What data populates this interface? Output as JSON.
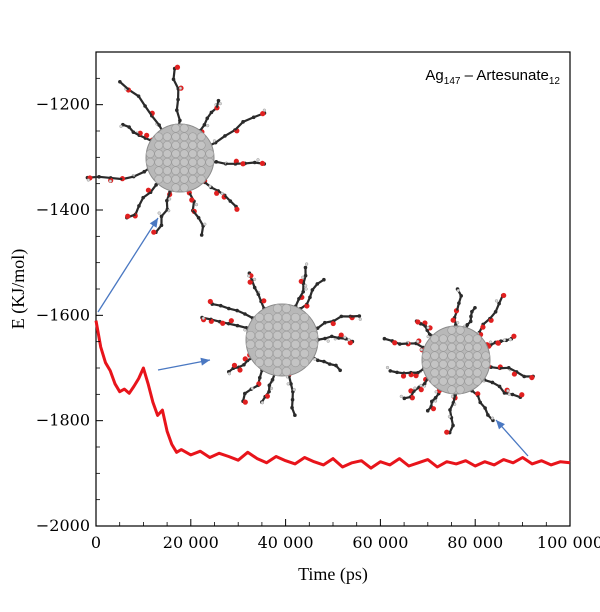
{
  "chart_data": {
    "type": "line",
    "title": "",
    "legend_label": {
      "base": "Ag",
      "sub1": "147",
      "dash": " – Artesunate",
      "sub2": "12"
    },
    "legend_placement": "top-right",
    "xlabel": "Time  (ps)",
    "ylabel": "E (KJ/mol)",
    "xlim": [
      0,
      100000
    ],
    "ylim": [
      -2000,
      -1100
    ],
    "x_ticks": [
      {
        "value": 0,
        "label": "0"
      },
      {
        "value": 20000,
        "label": "20 000"
      },
      {
        "value": 40000,
        "label": "40 000"
      },
      {
        "value": 60000,
        "label": "60 000"
      },
      {
        "value": 80000,
        "label": "80 000"
      },
      {
        "value": 100000,
        "label": "100 000"
      }
    ],
    "y_ticks": [
      {
        "value": -2000,
        "label": "−2000"
      },
      {
        "value": -1800,
        "label": "−1800"
      },
      {
        "value": -1600,
        "label": "−1600"
      },
      {
        "value": -1400,
        "label": "−1400"
      },
      {
        "value": -1200,
        "label": "−1200"
      }
    ],
    "grid": false,
    "series": [
      {
        "color": "#e8141b",
        "x": [
          0,
          1000,
          2000,
          3000,
          4000,
          5000,
          6000,
          7000,
          8000,
          9000,
          10000,
          11000,
          12000,
          13000,
          14000,
          15000,
          16000,
          17000,
          18000,
          20000,
          22000,
          24000,
          26000,
          28000,
          30000,
          32000,
          34000,
          36000,
          38000,
          40000,
          42000,
          44000,
          46000,
          48000,
          50000,
          52000,
          54000,
          56000,
          58000,
          60000,
          62000,
          64000,
          66000,
          68000,
          70000,
          72000,
          74000,
          76000,
          78000,
          80000,
          82000,
          84000,
          86000,
          88000,
          90000,
          92000,
          94000,
          96000,
          98000,
          100000
        ],
        "y": [
          -1610,
          -1660,
          -1690,
          -1705,
          -1730,
          -1745,
          -1740,
          -1748,
          -1735,
          -1720,
          -1700,
          -1730,
          -1765,
          -1790,
          -1780,
          -1820,
          -1845,
          -1860,
          -1855,
          -1865,
          -1858,
          -1870,
          -1862,
          -1868,
          -1875,
          -1860,
          -1872,
          -1880,
          -1868,
          -1876,
          -1882,
          -1870,
          -1878,
          -1884,
          -1872,
          -1888,
          -1880,
          -1876,
          -1890,
          -1878,
          -1884,
          -1872,
          -1886,
          -1880,
          -1874,
          -1888,
          -1878,
          -1882,
          -1876,
          -1886,
          -1878,
          -1884,
          -1874,
          -1880,
          -1870,
          -1882,
          -1876,
          -1884,
          -1878,
          -1880
        ]
      }
    ],
    "annotations": [
      {
        "label": "initial configuration (Ag nanoparticle with 12 Artesunate molecules)",
        "target_x": 0,
        "target_y": -1600
      },
      {
        "label": "configuration around 12 000 ps",
        "target_x": 12000,
        "target_y": -1720
      },
      {
        "label": "final configuration",
        "target_x": 97000,
        "target_y": -1875
      }
    ],
    "colors": {
      "line": "#e8141b",
      "arrow": "#4a78c2",
      "silver": "#b8b8b8",
      "oxygen": "#e02020",
      "carbon": "#2a2a2a"
    }
  }
}
